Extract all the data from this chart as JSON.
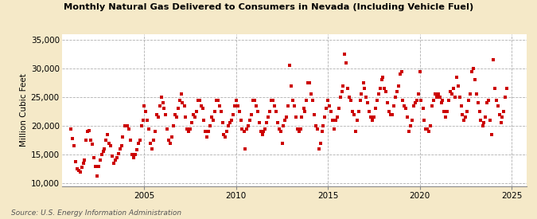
{
  "title": "Monthly Natural Gas Delivered to Consumers in Nevada (Including Vehicle Fuel)",
  "ylabel": "Million Cubic Feet",
  "source": "Source: U.S. Energy Information Administration",
  "background_color": "#f5e9c8",
  "plot_bg_color": "#ffffff",
  "marker_color": "#cc0000",
  "marker_size": 3.5,
  "ylim": [
    9500,
    36000
  ],
  "yticks": [
    10000,
    15000,
    20000,
    25000,
    30000,
    35000
  ],
  "xlim_start": 2000.5,
  "xlim_end": 2025.8,
  "xticks": [
    2005,
    2010,
    2015,
    2020,
    2025
  ],
  "data": [
    [
      2001.0,
      19500
    ],
    [
      2001.08,
      17800
    ],
    [
      2001.17,
      16500
    ],
    [
      2001.25,
      13800
    ],
    [
      2001.33,
      12500
    ],
    [
      2001.42,
      12200
    ],
    [
      2001.5,
      12000
    ],
    [
      2001.58,
      12800
    ],
    [
      2001.67,
      13500
    ],
    [
      2001.75,
      14000
    ],
    [
      2001.83,
      17500
    ],
    [
      2001.92,
      19000
    ],
    [
      2002.0,
      19200
    ],
    [
      2002.08,
      17500
    ],
    [
      2002.17,
      16800
    ],
    [
      2002.25,
      14500
    ],
    [
      2002.33,
      13000
    ],
    [
      2002.42,
      11200
    ],
    [
      2002.5,
      13000
    ],
    [
      2002.58,
      14000
    ],
    [
      2002.67,
      15000
    ],
    [
      2002.75,
      15500
    ],
    [
      2002.83,
      16000
    ],
    [
      2002.92,
      17500
    ],
    [
      2003.0,
      18500
    ],
    [
      2003.08,
      17000
    ],
    [
      2003.17,
      16500
    ],
    [
      2003.25,
      14800
    ],
    [
      2003.33,
      13500
    ],
    [
      2003.42,
      14000
    ],
    [
      2003.5,
      14500
    ],
    [
      2003.58,
      15200
    ],
    [
      2003.67,
      16000
    ],
    [
      2003.75,
      16500
    ],
    [
      2003.83,
      18000
    ],
    [
      2003.92,
      20000
    ],
    [
      2004.0,
      20000
    ],
    [
      2004.08,
      20000
    ],
    [
      2004.17,
      19500
    ],
    [
      2004.25,
      17500
    ],
    [
      2004.33,
      15000
    ],
    [
      2004.42,
      14500
    ],
    [
      2004.5,
      15000
    ],
    [
      2004.58,
      15800
    ],
    [
      2004.67,
      17000
    ],
    [
      2004.75,
      17500
    ],
    [
      2004.83,
      20000
    ],
    [
      2004.92,
      21000
    ],
    [
      2005.0,
      23500
    ],
    [
      2005.08,
      22500
    ],
    [
      2005.17,
      21000
    ],
    [
      2005.25,
      19500
    ],
    [
      2005.33,
      17000
    ],
    [
      2005.42,
      16000
    ],
    [
      2005.5,
      17500
    ],
    [
      2005.58,
      19000
    ],
    [
      2005.67,
      22000
    ],
    [
      2005.75,
      21500
    ],
    [
      2005.83,
      23500
    ],
    [
      2005.92,
      25000
    ],
    [
      2006.0,
      24000
    ],
    [
      2006.08,
      23000
    ],
    [
      2006.17,
      22000
    ],
    [
      2006.25,
      19500
    ],
    [
      2006.33,
      17500
    ],
    [
      2006.42,
      17000
    ],
    [
      2006.5,
      18000
    ],
    [
      2006.58,
      20000
    ],
    [
      2006.67,
      22000
    ],
    [
      2006.75,
      21500
    ],
    [
      2006.83,
      23000
    ],
    [
      2006.92,
      24500
    ],
    [
      2007.0,
      25500
    ],
    [
      2007.08,
      24000
    ],
    [
      2007.17,
      23500
    ],
    [
      2007.25,
      21500
    ],
    [
      2007.33,
      19500
    ],
    [
      2007.42,
      19000
    ],
    [
      2007.5,
      19500
    ],
    [
      2007.58,
      20500
    ],
    [
      2007.67,
      22000
    ],
    [
      2007.75,
      21500
    ],
    [
      2007.83,
      22500
    ],
    [
      2007.92,
      24500
    ],
    [
      2008.0,
      24500
    ],
    [
      2008.08,
      23500
    ],
    [
      2008.17,
      23000
    ],
    [
      2008.25,
      21000
    ],
    [
      2008.33,
      19000
    ],
    [
      2008.42,
      18000
    ],
    [
      2008.5,
      19000
    ],
    [
      2008.58,
      20000
    ],
    [
      2008.67,
      21500
    ],
    [
      2008.75,
      21000
    ],
    [
      2008.83,
      22500
    ],
    [
      2008.92,
      24500
    ],
    [
      2009.0,
      24500
    ],
    [
      2009.08,
      23500
    ],
    [
      2009.17,
      22500
    ],
    [
      2009.25,
      20500
    ],
    [
      2009.33,
      18500
    ],
    [
      2009.42,
      18000
    ],
    [
      2009.5,
      19000
    ],
    [
      2009.58,
      20000
    ],
    [
      2009.67,
      20500
    ],
    [
      2009.75,
      21000
    ],
    [
      2009.83,
      22000
    ],
    [
      2009.92,
      23500
    ],
    [
      2010.0,
      24500
    ],
    [
      2010.08,
      23500
    ],
    [
      2010.17,
      22500
    ],
    [
      2010.25,
      21000
    ],
    [
      2010.33,
      19500
    ],
    [
      2010.42,
      19000
    ],
    [
      2010.5,
      16000
    ],
    [
      2010.58,
      19500
    ],
    [
      2010.67,
      20000
    ],
    [
      2010.75,
      21000
    ],
    [
      2010.83,
      22000
    ],
    [
      2010.92,
      24500
    ],
    [
      2011.0,
      24500
    ],
    [
      2011.08,
      23500
    ],
    [
      2011.17,
      22500
    ],
    [
      2011.25,
      20500
    ],
    [
      2011.33,
      19000
    ],
    [
      2011.42,
      18500
    ],
    [
      2011.5,
      19000
    ],
    [
      2011.58,
      19500
    ],
    [
      2011.67,
      20500
    ],
    [
      2011.75,
      21500
    ],
    [
      2011.83,
      22500
    ],
    [
      2011.92,
      24500
    ],
    [
      2012.0,
      24500
    ],
    [
      2012.08,
      23500
    ],
    [
      2012.17,
      22500
    ],
    [
      2012.25,
      20500
    ],
    [
      2012.33,
      19500
    ],
    [
      2012.42,
      19000
    ],
    [
      2012.5,
      17000
    ],
    [
      2012.58,
      20000
    ],
    [
      2012.67,
      21000
    ],
    [
      2012.75,
      21500
    ],
    [
      2012.83,
      23500
    ],
    [
      2012.92,
      30500
    ],
    [
      2013.0,
      27000
    ],
    [
      2013.08,
      24500
    ],
    [
      2013.17,
      23500
    ],
    [
      2013.25,
      21500
    ],
    [
      2013.33,
      19500
    ],
    [
      2013.42,
      19000
    ],
    [
      2013.5,
      19500
    ],
    [
      2013.58,
      21500
    ],
    [
      2013.67,
      23000
    ],
    [
      2013.75,
      22500
    ],
    [
      2013.83,
      24500
    ],
    [
      2013.92,
      27500
    ],
    [
      2014.0,
      27500
    ],
    [
      2014.08,
      25500
    ],
    [
      2014.17,
      24500
    ],
    [
      2014.25,
      22000
    ],
    [
      2014.33,
      20000
    ],
    [
      2014.42,
      19500
    ],
    [
      2014.5,
      16000
    ],
    [
      2014.58,
      17000
    ],
    [
      2014.67,
      19000
    ],
    [
      2014.75,
      20000
    ],
    [
      2014.83,
      21500
    ],
    [
      2014.92,
      23000
    ],
    [
      2015.0,
      24500
    ],
    [
      2015.08,
      23500
    ],
    [
      2015.17,
      22500
    ],
    [
      2015.25,
      21000
    ],
    [
      2015.33,
      19500
    ],
    [
      2015.42,
      21000
    ],
    [
      2015.5,
      21500
    ],
    [
      2015.58,
      23000
    ],
    [
      2015.67,
      25000
    ],
    [
      2015.75,
      26000
    ],
    [
      2015.83,
      27000
    ],
    [
      2015.92,
      32500
    ],
    [
      2016.0,
      31000
    ],
    [
      2016.08,
      26500
    ],
    [
      2016.17,
      25000
    ],
    [
      2016.25,
      24500
    ],
    [
      2016.33,
      22500
    ],
    [
      2016.42,
      22000
    ],
    [
      2016.5,
      19000
    ],
    [
      2016.58,
      21000
    ],
    [
      2016.67,
      22500
    ],
    [
      2016.75,
      24500
    ],
    [
      2016.83,
      25500
    ],
    [
      2016.92,
      27500
    ],
    [
      2017.0,
      26500
    ],
    [
      2017.08,
      25000
    ],
    [
      2017.17,
      24000
    ],
    [
      2017.25,
      22500
    ],
    [
      2017.33,
      21500
    ],
    [
      2017.42,
      21000
    ],
    [
      2017.5,
      21500
    ],
    [
      2017.58,
      23000
    ],
    [
      2017.67,
      24500
    ],
    [
      2017.75,
      25500
    ],
    [
      2017.83,
      26500
    ],
    [
      2017.92,
      28000
    ],
    [
      2018.0,
      28500
    ],
    [
      2018.08,
      26500
    ],
    [
      2018.17,
      26000
    ],
    [
      2018.25,
      24000
    ],
    [
      2018.33,
      22500
    ],
    [
      2018.42,
      22000
    ],
    [
      2018.5,
      22000
    ],
    [
      2018.58,
      23500
    ],
    [
      2018.67,
      25000
    ],
    [
      2018.75,
      26000
    ],
    [
      2018.83,
      27000
    ],
    [
      2018.92,
      29000
    ],
    [
      2019.0,
      29500
    ],
    [
      2019.08,
      24500
    ],
    [
      2019.17,
      23500
    ],
    [
      2019.25,
      23000
    ],
    [
      2019.33,
      21500
    ],
    [
      2019.42,
      19000
    ],
    [
      2019.5,
      20000
    ],
    [
      2019.58,
      21000
    ],
    [
      2019.67,
      23500
    ],
    [
      2019.75,
      24000
    ],
    [
      2019.83,
      24500
    ],
    [
      2019.92,
      25500
    ],
    [
      2020.0,
      29500
    ],
    [
      2020.08,
      24500
    ],
    [
      2020.17,
      23000
    ],
    [
      2020.25,
      21000
    ],
    [
      2020.33,
      19500
    ],
    [
      2020.42,
      19500
    ],
    [
      2020.5,
      19000
    ],
    [
      2020.58,
      20000
    ],
    [
      2020.67,
      23500
    ],
    [
      2020.75,
      24500
    ],
    [
      2020.83,
      25500
    ],
    [
      2020.92,
      25000
    ],
    [
      2021.0,
      25500
    ],
    [
      2021.08,
      25000
    ],
    [
      2021.17,
      24000
    ],
    [
      2021.25,
      24500
    ],
    [
      2021.33,
      22500
    ],
    [
      2021.42,
      21500
    ],
    [
      2021.5,
      22500
    ],
    [
      2021.58,
      24500
    ],
    [
      2021.67,
      26000
    ],
    [
      2021.75,
      25500
    ],
    [
      2021.83,
      26500
    ],
    [
      2021.92,
      25000
    ],
    [
      2022.0,
      28500
    ],
    [
      2022.08,
      27000
    ],
    [
      2022.17,
      25000
    ],
    [
      2022.25,
      23500
    ],
    [
      2022.33,
      22000
    ],
    [
      2022.42,
      21000
    ],
    [
      2022.5,
      21500
    ],
    [
      2022.58,
      22500
    ],
    [
      2022.67,
      24500
    ],
    [
      2022.75,
      25500
    ],
    [
      2022.83,
      29500
    ],
    [
      2022.92,
      30000
    ],
    [
      2023.0,
      28000
    ],
    [
      2023.08,
      25500
    ],
    [
      2023.17,
      24000
    ],
    [
      2023.25,
      22500
    ],
    [
      2023.33,
      21000
    ],
    [
      2023.42,
      20000
    ],
    [
      2023.5,
      20500
    ],
    [
      2023.58,
      21500
    ],
    [
      2023.67,
      24000
    ],
    [
      2023.75,
      24500
    ],
    [
      2023.83,
      21000
    ],
    [
      2023.92,
      18500
    ],
    [
      2024.0,
      31500
    ],
    [
      2024.08,
      26500
    ],
    [
      2024.17,
      24500
    ],
    [
      2024.25,
      23500
    ],
    [
      2024.33,
      22000
    ],
    [
      2024.42,
      20500
    ],
    [
      2024.5,
      21500
    ],
    [
      2024.58,
      22500
    ],
    [
      2024.67,
      25000
    ],
    [
      2024.75,
      26500
    ]
  ]
}
